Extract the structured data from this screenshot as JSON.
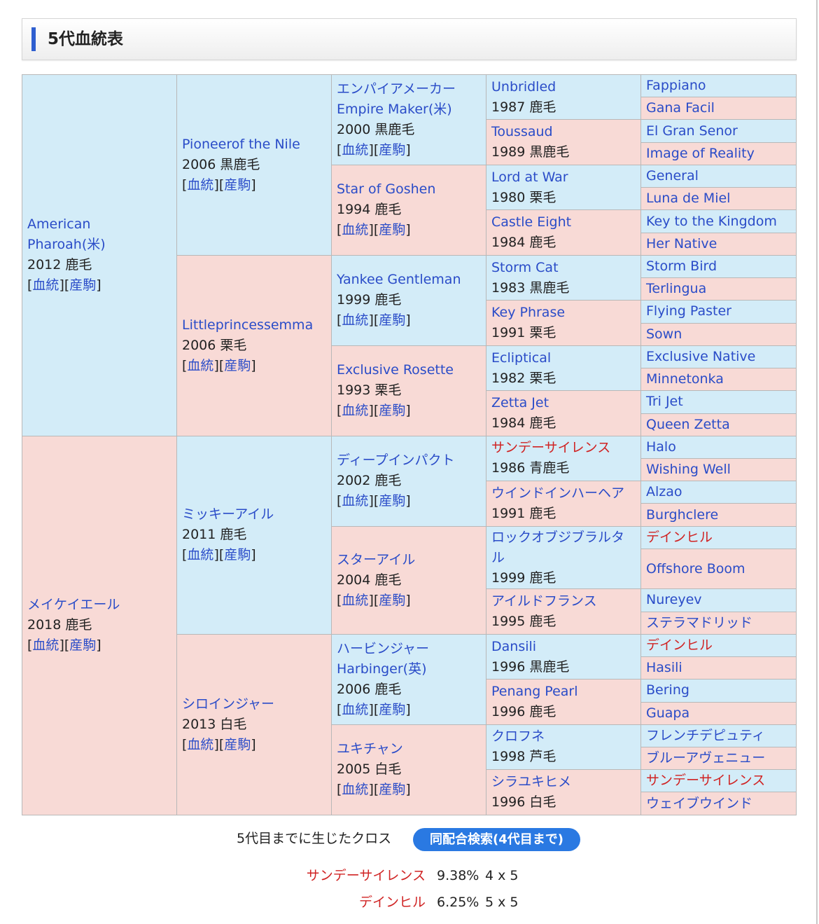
{
  "title": "5代血統表",
  "gen1": [
    {
      "name": "American Pharoah(米)",
      "year": "2012 鹿毛",
      "links": [
        "血統",
        "産駒"
      ]
    },
    {
      "name": "メイケイエール",
      "year": "2018 鹿毛",
      "links": [
        "血統",
        "産駒"
      ]
    }
  ],
  "gen2": [
    {
      "name": "Pioneerof the Nile",
      "year": "2006 黒鹿毛",
      "links": [
        "血統",
        "産駒"
      ]
    },
    {
      "name": "Littleprincessemma",
      "year": "2006 栗毛",
      "links": [
        "血統",
        "産駒"
      ]
    },
    {
      "name": "ミッキーアイル",
      "year": "2011 鹿毛",
      "links": [
        "血統",
        "産駒"
      ]
    },
    {
      "name": "シロインジャー",
      "year": "2013 白毛",
      "links": [
        "血統",
        "産駒"
      ]
    }
  ],
  "gen3": [
    {
      "name": "エンパイアメーカー",
      "name2": "Empire Maker(米)",
      "year": "2000 黒鹿毛",
      "links": [
        "血統",
        "産駒"
      ]
    },
    {
      "name": "Star of Goshen",
      "year": "1994 鹿毛",
      "links": [
        "血統",
        "産駒"
      ]
    },
    {
      "name": "Yankee Gentleman",
      "year": "1999 鹿毛",
      "links": [
        "血統",
        "産駒"
      ]
    },
    {
      "name": "Exclusive Rosette",
      "year": "1993 栗毛",
      "links": [
        "血統",
        "産駒"
      ]
    },
    {
      "name": "ディープインパクト",
      "year": "2002 鹿毛",
      "links": [
        "血統",
        "産駒"
      ]
    },
    {
      "name": "スターアイル",
      "year": "2004 鹿毛",
      "links": [
        "血統",
        "産駒"
      ]
    },
    {
      "name": "ハービンジャー",
      "name2": "Harbinger(英)",
      "year": "2006 鹿毛",
      "links": [
        "血統",
        "産駒"
      ]
    },
    {
      "name": "ユキチャン",
      "year": "2005 白毛",
      "links": [
        "血統",
        "産駒"
      ]
    }
  ],
  "gen4": [
    {
      "name": "Unbridled",
      "year": "1987 鹿毛"
    },
    {
      "name": "Toussaud",
      "year": "1989 黒鹿毛"
    },
    {
      "name": "Lord at War",
      "year": "1980 栗毛"
    },
    {
      "name": "Castle Eight",
      "year": "1984 鹿毛"
    },
    {
      "name": "Storm Cat",
      "year": "1983 黒鹿毛"
    },
    {
      "name": "Key Phrase",
      "year": "1991 栗毛"
    },
    {
      "name": "Ecliptical",
      "year": "1982 栗毛"
    },
    {
      "name": "Zetta Jet",
      "year": "1984 鹿毛"
    },
    {
      "name": "サンデーサイレンス",
      "year": "1986 青鹿毛"
    },
    {
      "name": "ウインドインハーヘア",
      "year": "1991 鹿毛"
    },
    {
      "name": "ロックオブジブラルタル",
      "year": "1999 鹿毛"
    },
    {
      "name": "アイルドフランス",
      "year": "1995 鹿毛"
    },
    {
      "name": "Dansili",
      "year": "1996 黒鹿毛"
    },
    {
      "name": "Penang Pearl",
      "year": "1996 鹿毛"
    },
    {
      "name": "クロフネ",
      "year": "1998 芦毛"
    },
    {
      "name": "シラユキヒメ",
      "year": "1996 白毛"
    }
  ],
  "gen5": [
    "Fappiano",
    "Gana Facil",
    "El Gran Senor",
    "Image of Reality",
    "General",
    "Luna de Miel",
    "Key to the Kingdom",
    "Her Native",
    "Storm Bird",
    "Terlingua",
    "Flying Paster",
    "Sown",
    "Exclusive Native",
    "Minnetonka",
    "Tri Jet",
    "Queen Zetta",
    "Halo",
    "Wishing Well",
    "Alzao",
    "Burghclere",
    "デインヒル",
    "Offshore Boom",
    "Nureyev",
    "ステラマドリッド",
    "デインヒル",
    "Hasili",
    "Bering",
    "Guapa",
    "フレンチデピュティ",
    "ブルーアヴェニュー",
    "サンデーサイレンス",
    "ウェイブウインド"
  ],
  "cross": {
    "label": "5代目までに生じたクロス",
    "button": "同配合検索(4代目まで)",
    "items": [
      {
        "name": "サンデーサイレンス",
        "pct": "9.38%",
        "gen": "4 x 5"
      },
      {
        "name": "デインヒル",
        "pct": "6.25%",
        "gen": "5 x 5"
      }
    ]
  },
  "colors": {
    "male_bg": "#d3ecf8",
    "female_bg": "#f8dad6",
    "link": "#2a4cc8",
    "cross_red": "#d02323",
    "button": "#2a79e2"
  }
}
